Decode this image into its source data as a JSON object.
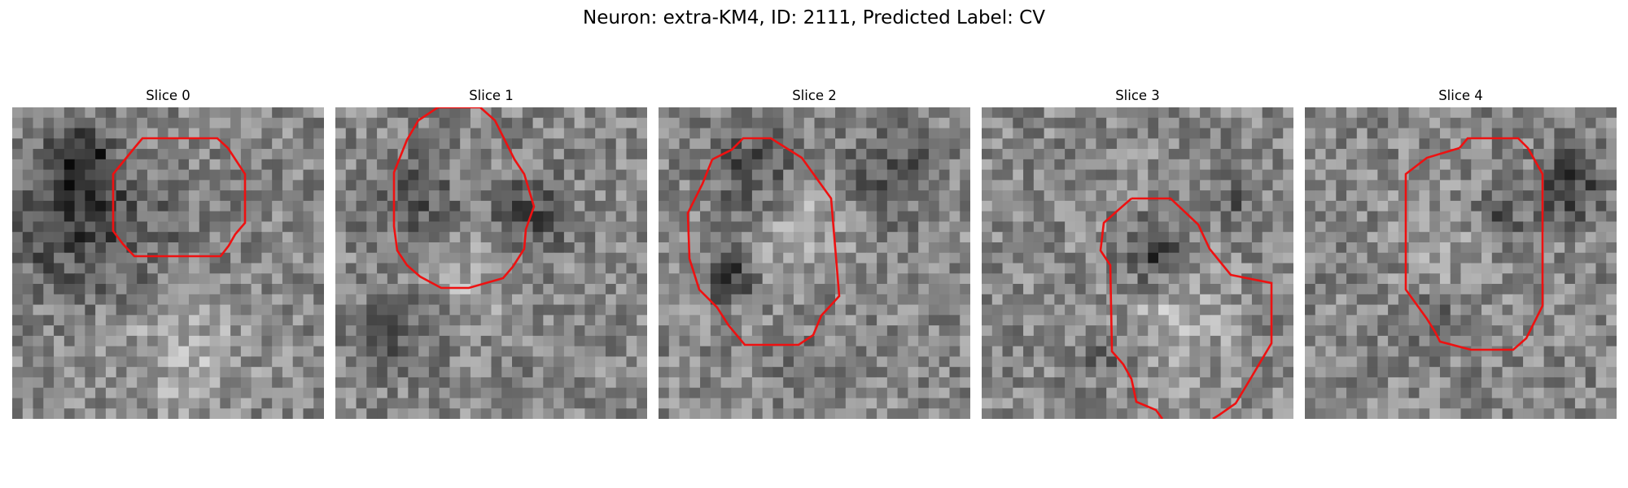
{
  "figure": {
    "title": "Neuron: extra-KM4, ID: 2111, Predicted Label: CV"
  },
  "panels": [
    {
      "title": "Slice 0",
      "contour_color": "#ee1111",
      "image": "grayscale-em-tile-with-dark-blob-left"
    },
    {
      "title": "Slice 1",
      "contour_color": "#ee1111",
      "image": "grayscale-em-tile-with-round-vesicle"
    },
    {
      "title": "Slice 2",
      "contour_color": "#ee1111",
      "image": "grayscale-em-tile-with-triangular-membrane"
    },
    {
      "title": "Slice 3",
      "contour_color": "#ee1111",
      "image": "grayscale-em-tile-with-lower-round-vesicle"
    },
    {
      "title": "Slice 4",
      "contour_color": "#ee1111",
      "image": "grayscale-em-tile-with-oval-vesicle"
    }
  ]
}
